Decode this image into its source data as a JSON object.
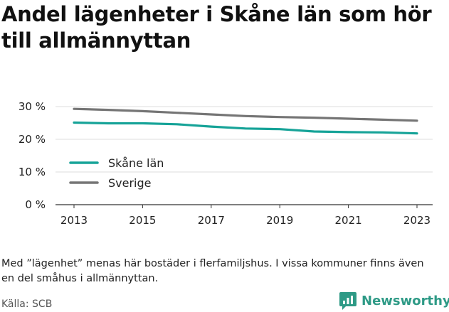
{
  "title": "Andel lägenheter i Skåne län som hör till allmännyttan",
  "note": "Med ”lägenhet” menas här bostäder i flerfamiljshus. I vissa kommuner finns även en del småhus i allmännyttan.",
  "source": "Källa: SCB",
  "brand": {
    "name": "Newsworthy",
    "icon": "newsworthy-logo-icon"
  },
  "colors": {
    "skane": "#16a398",
    "sverige": "#757575",
    "brand": "#2e9a86"
  },
  "chart_data": {
    "type": "line",
    "x": [
      2013,
      2014,
      2015,
      2016,
      2017,
      2018,
      2019,
      2020,
      2021,
      2022,
      2023
    ],
    "x_ticks": [
      2013,
      2015,
      2017,
      2019,
      2021,
      2023
    ],
    "y_ticks": [
      0,
      10,
      20,
      30
    ],
    "y_tick_labels": [
      "0 %",
      "10 %",
      "20 %",
      "30 %"
    ],
    "ylim": [
      0,
      30
    ],
    "grid": true,
    "legend_placement": "bottom-left",
    "series": [
      {
        "name": "Skåne län",
        "color": "#16a398",
        "values": [
          25.1,
          24.9,
          24.9,
          24.6,
          23.9,
          23.3,
          23.1,
          22.4,
          22.2,
          22.1,
          21.8
        ]
      },
      {
        "name": "Sverige",
        "color": "#757575",
        "values": [
          29.3,
          29.0,
          28.6,
          28.1,
          27.6,
          27.1,
          26.8,
          26.6,
          26.3,
          26.0,
          25.7
        ]
      }
    ]
  }
}
